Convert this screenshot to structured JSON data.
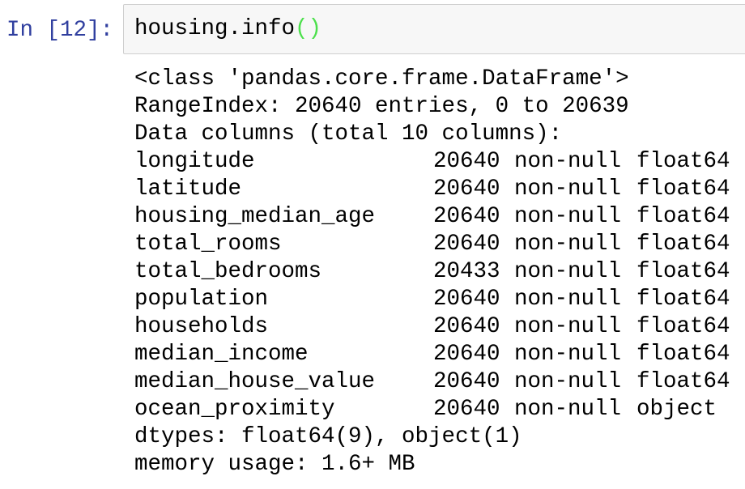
{
  "cell": {
    "prompt": "In [12]:",
    "code": "housing.info",
    "parens": "()"
  },
  "output": {
    "header": [
      "<class 'pandas.core.frame.DataFrame'>",
      "RangeIndex: 20640 entries, 0 to 20639",
      "Data columns (total 10 columns):"
    ],
    "columns": [
      {
        "name": "longitude",
        "count": 20640,
        "nulls": "non-null",
        "dtype": "float64"
      },
      {
        "name": "latitude",
        "count": 20640,
        "nulls": "non-null",
        "dtype": "float64"
      },
      {
        "name": "housing_median_age",
        "count": 20640,
        "nulls": "non-null",
        "dtype": "float64"
      },
      {
        "name": "total_rooms",
        "count": 20640,
        "nulls": "non-null",
        "dtype": "float64"
      },
      {
        "name": "total_bedrooms",
        "count": 20433,
        "nulls": "non-null",
        "dtype": "float64"
      },
      {
        "name": "population",
        "count": 20640,
        "nulls": "non-null",
        "dtype": "float64"
      },
      {
        "name": "households",
        "count": 20640,
        "nulls": "non-null",
        "dtype": "float64"
      },
      {
        "name": "median_income",
        "count": 20640,
        "nulls": "non-null",
        "dtype": "float64"
      },
      {
        "name": "median_house_value",
        "count": 20640,
        "nulls": "non-null",
        "dtype": "float64"
      },
      {
        "name": "ocean_proximity",
        "count": 20640,
        "nulls": "non-null",
        "dtype": "object"
      }
    ],
    "footer": [
      "dtypes: float64(9), object(1)",
      "memory usage: 1.6+ MB"
    ]
  }
}
